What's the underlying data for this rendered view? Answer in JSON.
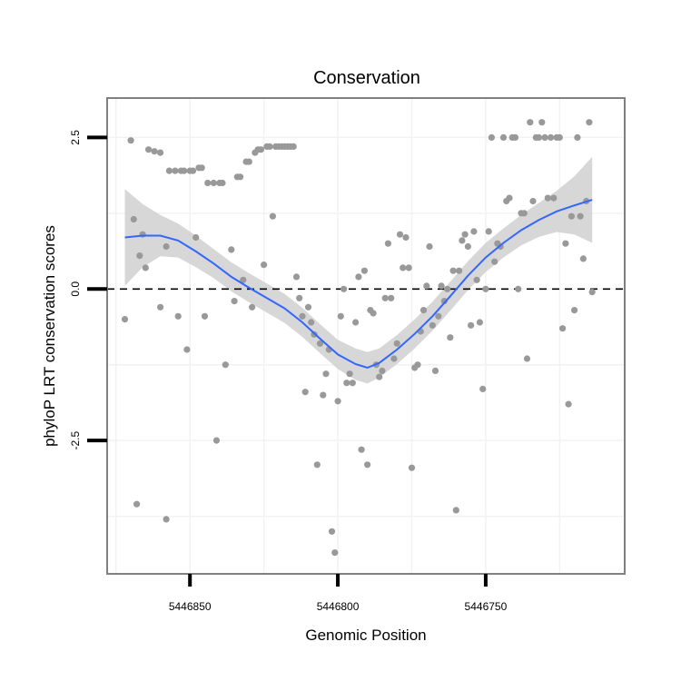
{
  "chart_data": {
    "type": "scatter",
    "title": "Conservation",
    "xlabel": "Genomic Position",
    "ylabel": "phyloP LRT conservation scores",
    "x_reversed": true,
    "xlim": [
      5446878,
      5446703
    ],
    "ylim": [
      -4.7,
      3.15
    ],
    "x_ticks": [
      5446850,
      5446800,
      5446750
    ],
    "x_tick_labels": [
      "5446850",
      "5446800",
      "5446750"
    ],
    "y_ticks": [
      -2.5,
      0.0,
      2.5
    ],
    "y_tick_labels": [
      "-2.5",
      "0.0",
      "2.5"
    ],
    "reference_line": {
      "y": 0,
      "style": "dashed"
    },
    "grid": true,
    "point_color": "#999999",
    "line_color": "#3366ff",
    "band_color": "#d3d3d3",
    "points": [
      {
        "x": 5446872,
        "y": -0.5
      },
      {
        "x": 5446870,
        "y": 2.45
      },
      {
        "x": 5446869,
        "y": 1.15
      },
      {
        "x": 5446868,
        "y": -3.55
      },
      {
        "x": 5446867,
        "y": 0.55
      },
      {
        "x": 5446866,
        "y": 0.9
      },
      {
        "x": 5446865,
        "y": 0.35
      },
      {
        "x": 5446864,
        "y": 2.3
      },
      {
        "x": 5446862,
        "y": 2.27
      },
      {
        "x": 5446860,
        "y": -0.3
      },
      {
        "x": 5446860,
        "y": 2.25
      },
      {
        "x": 5446858,
        "y": -3.8
      },
      {
        "x": 5446858,
        "y": 0.7
      },
      {
        "x": 5446857,
        "y": 1.95
      },
      {
        "x": 5446855,
        "y": 1.95
      },
      {
        "x": 5446854,
        "y": -0.45
      },
      {
        "x": 5446853,
        "y": 1.95
      },
      {
        "x": 5446852,
        "y": 1.95
      },
      {
        "x": 5446851,
        "y": -1.0
      },
      {
        "x": 5446850,
        "y": 1.95
      },
      {
        "x": 5446849,
        "y": 1.95
      },
      {
        "x": 5446848,
        "y": 0.85
      },
      {
        "x": 5446847,
        "y": 2.0
      },
      {
        "x": 5446846,
        "y": 2.0
      },
      {
        "x": 5446845,
        "y": -0.45
      },
      {
        "x": 5446844,
        "y": 1.75
      },
      {
        "x": 5446842,
        "y": 1.75
      },
      {
        "x": 5446841,
        "y": -2.5
      },
      {
        "x": 5446840,
        "y": 1.75
      },
      {
        "x": 5446839,
        "y": 1.75
      },
      {
        "x": 5446838,
        "y": -1.25
      },
      {
        "x": 5446836,
        "y": 0.65
      },
      {
        "x": 5446835,
        "y": -0.2
      },
      {
        "x": 5446834,
        "y": 1.85
      },
      {
        "x": 5446833,
        "y": 1.85
      },
      {
        "x": 5446832,
        "y": 0.15
      },
      {
        "x": 5446831,
        "y": 2.1
      },
      {
        "x": 5446830,
        "y": 2.1
      },
      {
        "x": 5446829,
        "y": -0.3
      },
      {
        "x": 5446828,
        "y": 2.25
      },
      {
        "x": 5446827,
        "y": 2.3
      },
      {
        "x": 5446826,
        "y": 2.3
      },
      {
        "x": 5446825,
        "y": 0.4
      },
      {
        "x": 5446824,
        "y": 2.35
      },
      {
        "x": 5446823,
        "y": 2.35
      },
      {
        "x": 5446822,
        "y": 1.2
      },
      {
        "x": 5446821,
        "y": 2.35
      },
      {
        "x": 5446820,
        "y": 2.35
      },
      {
        "x": 5446819,
        "y": 2.35
      },
      {
        "x": 5446818,
        "y": 2.35
      },
      {
        "x": 5446817,
        "y": 2.35
      },
      {
        "x": 5446816,
        "y": 2.35
      },
      {
        "x": 5446815,
        "y": 2.35
      },
      {
        "x": 5446814,
        "y": 0.2
      },
      {
        "x": 5446813,
        "y": -0.15
      },
      {
        "x": 5446812,
        "y": -0.45
      },
      {
        "x": 5446811,
        "y": -1.7
      },
      {
        "x": 5446810,
        "y": -0.3
      },
      {
        "x": 5446809,
        "y": -0.55
      },
      {
        "x": 5446808,
        "y": -0.75
      },
      {
        "x": 5446807,
        "y": -2.9
      },
      {
        "x": 5446806,
        "y": -0.9
      },
      {
        "x": 5446805,
        "y": -1.75
      },
      {
        "x": 5446804,
        "y": -1.4
      },
      {
        "x": 5446803,
        "y": -1.0
      },
      {
        "x": 5446802,
        "y": -4.0
      },
      {
        "x": 5446801,
        "y": -4.35
      },
      {
        "x": 5446800,
        "y": -1.85
      },
      {
        "x": 5446799,
        "y": -0.45
      },
      {
        "x": 5446798,
        "y": 0.0
      },
      {
        "x": 5446797,
        "y": -1.55
      },
      {
        "x": 5446796,
        "y": -1.4
      },
      {
        "x": 5446795,
        "y": -1.55
      },
      {
        "x": 5446794,
        "y": -0.55
      },
      {
        "x": 5446793,
        "y": 0.2
      },
      {
        "x": 5446792,
        "y": -2.65
      },
      {
        "x": 5446791,
        "y": 0.3
      },
      {
        "x": 5446790,
        "y": -2.9
      },
      {
        "x": 5446789,
        "y": -0.35
      },
      {
        "x": 5446788,
        "y": -0.4
      },
      {
        "x": 5446787,
        "y": -1.25
      },
      {
        "x": 5446786,
        "y": -1.45
      },
      {
        "x": 5446785,
        "y": -1.35
      },
      {
        "x": 5446784,
        "y": -0.15
      },
      {
        "x": 5446783,
        "y": 0.75
      },
      {
        "x": 5446782,
        "y": -0.15
      },
      {
        "x": 5446781,
        "y": -1.15
      },
      {
        "x": 5446780,
        "y": -0.9
      },
      {
        "x": 5446779,
        "y": 0.9
      },
      {
        "x": 5446778,
        "y": 0.35
      },
      {
        "x": 5446777,
        "y": 0.85
      },
      {
        "x": 5446776,
        "y": 0.35
      },
      {
        "x": 5446775,
        "y": -2.95
      },
      {
        "x": 5446774,
        "y": -1.3
      },
      {
        "x": 5446773,
        "y": -1.25
      },
      {
        "x": 5446772,
        "y": -0.7
      },
      {
        "x": 5446771,
        "y": -0.35
      },
      {
        "x": 5446770,
        "y": 0.05
      },
      {
        "x": 5446769,
        "y": 0.7
      },
      {
        "x": 5446768,
        "y": -0.6
      },
      {
        "x": 5446767,
        "y": -1.35
      },
      {
        "x": 5446766,
        "y": -0.45
      },
      {
        "x": 5446765,
        "y": 0.05
      },
      {
        "x": 5446764,
        "y": -0.2
      },
      {
        "x": 5446763,
        "y": 0.0
      },
      {
        "x": 5446762,
        "y": -0.8
      },
      {
        "x": 5446761,
        "y": 0.3
      },
      {
        "x": 5446760,
        "y": -3.65
      },
      {
        "x": 5446759,
        "y": 0.3
      },
      {
        "x": 5446758,
        "y": 0.8
      },
      {
        "x": 5446757,
        "y": 0.9
      },
      {
        "x": 5446756,
        "y": 0.7
      },
      {
        "x": 5446755,
        "y": -0.6
      },
      {
        "x": 5446754,
        "y": 0.95
      },
      {
        "x": 5446753,
        "y": 0.15
      },
      {
        "x": 5446752,
        "y": -0.55
      },
      {
        "x": 5446751,
        "y": -1.65
      },
      {
        "x": 5446750,
        "y": 0.0
      },
      {
        "x": 5446749,
        "y": 0.95
      },
      {
        "x": 5446748,
        "y": 2.5
      },
      {
        "x": 5446747,
        "y": 0.45
      },
      {
        "x": 5446746,
        "y": 0.75
      },
      {
        "x": 5446745,
        "y": 0.7
      },
      {
        "x": 5446744,
        "y": 2.5
      },
      {
        "x": 5446743,
        "y": 1.45
      },
      {
        "x": 5446742,
        "y": 1.5
      },
      {
        "x": 5446741,
        "y": 2.5
      },
      {
        "x": 5446740,
        "y": 2.5
      },
      {
        "x": 5446739,
        "y": 0.0
      },
      {
        "x": 5446738,
        "y": 1.25
      },
      {
        "x": 5446737,
        "y": 1.25
      },
      {
        "x": 5446736,
        "y": -1.15
      },
      {
        "x": 5446735,
        "y": 2.75
      },
      {
        "x": 5446734,
        "y": 1.45
      },
      {
        "x": 5446733,
        "y": 2.5
      },
      {
        "x": 5446732,
        "y": 2.5
      },
      {
        "x": 5446731,
        "y": 2.75
      },
      {
        "x": 5446730,
        "y": 2.5
      },
      {
        "x": 5446729,
        "y": 1.5
      },
      {
        "x": 5446728,
        "y": 2.5
      },
      {
        "x": 5446727,
        "y": 1.5
      },
      {
        "x": 5446726,
        "y": 2.5
      },
      {
        "x": 5446725,
        "y": 2.5
      },
      {
        "x": 5446724,
        "y": -0.65
      },
      {
        "x": 5446723,
        "y": 0.75
      },
      {
        "x": 5446722,
        "y": -1.9
      },
      {
        "x": 5446721,
        "y": 1.2
      },
      {
        "x": 5446720,
        "y": -0.35
      },
      {
        "x": 5446719,
        "y": 2.5
      },
      {
        "x": 5446718,
        "y": 1.2
      },
      {
        "x": 5446717,
        "y": 0.5
      },
      {
        "x": 5446716,
        "y": 1.45
      },
      {
        "x": 5446715,
        "y": 2.75
      },
      {
        "x": 5446714,
        "y": -0.05
      }
    ],
    "smooth_curve": [
      {
        "x": 5446872,
        "y": 0.85
      },
      {
        "x": 5446866,
        "y": 0.88
      },
      {
        "x": 5446860,
        "y": 0.88
      },
      {
        "x": 5446854,
        "y": 0.8
      },
      {
        "x": 5446848,
        "y": 0.62
      },
      {
        "x": 5446842,
        "y": 0.42
      },
      {
        "x": 5446836,
        "y": 0.2
      },
      {
        "x": 5446830,
        "y": 0.02
      },
      {
        "x": 5446824,
        "y": -0.15
      },
      {
        "x": 5446818,
        "y": -0.32
      },
      {
        "x": 5446812,
        "y": -0.55
      },
      {
        "x": 5446806,
        "y": -0.82
      },
      {
        "x": 5446800,
        "y": -1.08
      },
      {
        "x": 5446794,
        "y": -1.24
      },
      {
        "x": 5446790,
        "y": -1.3
      },
      {
        "x": 5446786,
        "y": -1.22
      },
      {
        "x": 5446780,
        "y": -1.0
      },
      {
        "x": 5446774,
        "y": -0.74
      },
      {
        "x": 5446768,
        "y": -0.45
      },
      {
        "x": 5446762,
        "y": -0.12
      },
      {
        "x": 5446756,
        "y": 0.22
      },
      {
        "x": 5446750,
        "y": 0.52
      },
      {
        "x": 5446744,
        "y": 0.76
      },
      {
        "x": 5446738,
        "y": 0.97
      },
      {
        "x": 5446732,
        "y": 1.14
      },
      {
        "x": 5446726,
        "y": 1.28
      },
      {
        "x": 5446720,
        "y": 1.38
      },
      {
        "x": 5446714,
        "y": 1.47
      }
    ],
    "ci_upper": [
      1.65,
      1.4,
      1.22,
      1.08,
      0.88,
      0.66,
      0.44,
      0.26,
      0.09,
      -0.08,
      -0.31,
      -0.58,
      -0.84,
      -0.98,
      -1.04,
      -0.98,
      -0.76,
      -0.5,
      -0.21,
      0.12,
      0.46,
      0.76,
      1.0,
      1.22,
      1.42,
      1.62,
      1.86,
      2.18
    ],
    "ci_lower": [
      0.05,
      0.36,
      0.54,
      0.52,
      0.36,
      0.18,
      -0.04,
      -0.22,
      -0.39,
      -0.56,
      -0.79,
      -1.06,
      -1.32,
      -1.5,
      -1.56,
      -1.46,
      -1.24,
      -0.98,
      -0.69,
      -0.36,
      -0.02,
      0.28,
      0.52,
      0.72,
      0.86,
      0.94,
      0.9,
      0.76
    ]
  }
}
